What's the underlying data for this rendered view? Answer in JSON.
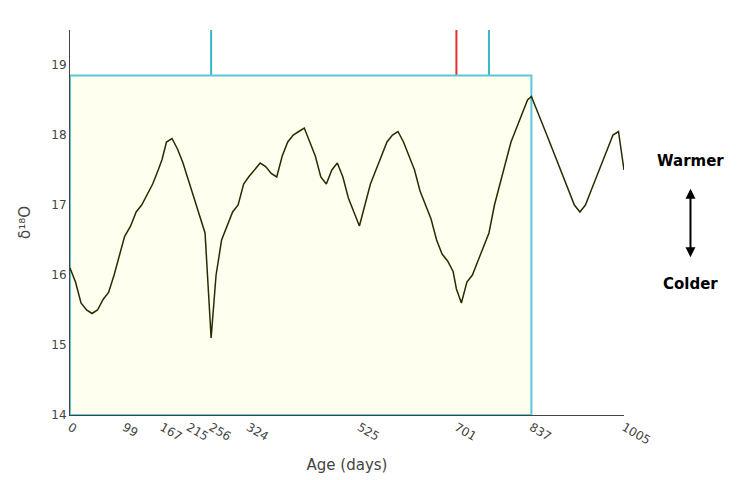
{
  "chart_data": {
    "type": "line",
    "xlabel": "Age (days)",
    "ylabel": "δ¹⁸O",
    "xlim": [
      0,
      1005
    ],
    "ylim": [
      14,
      19.5
    ],
    "xticks": [
      0,
      99,
      167,
      215,
      256,
      324,
      525,
      701,
      837,
      1005
    ],
    "yticks": [
      14,
      15,
      16,
      17,
      18,
      19
    ],
    "grid": false,
    "color": "#2a2a00",
    "x": [
      0,
      10,
      20,
      30,
      40,
      50,
      60,
      70,
      80,
      90,
      99,
      110,
      120,
      130,
      140,
      150,
      160,
      167,
      175,
      185,
      195,
      205,
      215,
      225,
      235,
      245,
      256,
      265,
      275,
      285,
      295,
      305,
      315,
      324,
      335,
      345,
      355,
      365,
      375,
      385,
      395,
      405,
      415,
      425,
      435,
      445,
      455,
      465,
      475,
      485,
      495,
      505,
      515,
      525,
      535,
      545,
      555,
      565,
      575,
      585,
      595,
      605,
      615,
      625,
      635,
      645,
      655,
      665,
      675,
      685,
      695,
      701,
      710,
      720,
      730,
      740,
      750,
      760,
      770,
      780,
      790,
      800,
      810,
      820,
      830,
      837,
      845,
      855,
      865,
      875,
      885,
      895,
      905,
      915,
      925,
      935,
      945,
      955,
      965,
      975,
      985,
      995,
      1005
    ],
    "values": [
      16.1,
      15.9,
      15.6,
      15.5,
      15.45,
      15.5,
      15.65,
      15.75,
      16.0,
      16.3,
      16.55,
      16.7,
      16.9,
      17.0,
      17.15,
      17.3,
      17.5,
      17.65,
      17.9,
      17.95,
      17.8,
      17.6,
      17.35,
      17.1,
      16.85,
      16.6,
      15.1,
      16.0,
      16.5,
      16.7,
      16.9,
      17.0,
      17.3,
      17.4,
      17.5,
      17.6,
      17.55,
      17.45,
      17.4,
      17.7,
      17.9,
      18.0,
      18.05,
      18.1,
      17.9,
      17.7,
      17.4,
      17.3,
      17.5,
      17.6,
      17.4,
      17.1,
      16.9,
      16.7,
      17.0,
      17.3,
      17.5,
      17.7,
      17.9,
      18.0,
      18.05,
      17.9,
      17.7,
      17.5,
      17.2,
      17.0,
      16.8,
      16.5,
      16.3,
      16.2,
      16.05,
      15.8,
      15.6,
      15.9,
      16.0,
      16.2,
      16.4,
      16.6,
      17.0,
      17.3,
      17.6,
      17.9,
      18.1,
      18.3,
      18.5,
      18.55,
      18.4,
      18.2,
      18.0,
      17.8,
      17.6,
      17.4,
      17.2,
      17.0,
      16.9,
      17.0,
      17.2,
      17.4,
      17.6,
      17.8,
      18.0,
      18.05,
      17.5
    ],
    "shaded_region": {
      "x": [
        0,
        837
      ],
      "y": [
        14,
        18.85
      ],
      "color": "#fffff0",
      "edge_color": "#5bc8d8"
    },
    "vlines": [
      {
        "x": 256,
        "color": "#3ab5cc"
      },
      {
        "x": 701,
        "color": "#e03030"
      },
      {
        "x": 760,
        "color": "#3ab5cc"
      }
    ],
    "annotations": [
      "Warmer",
      "Colder"
    ]
  }
}
